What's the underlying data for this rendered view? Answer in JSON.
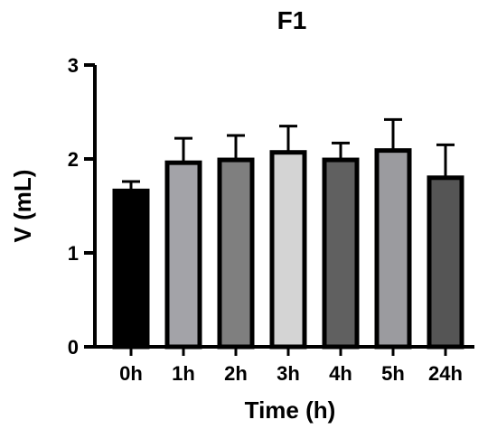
{
  "chart_data": {
    "type": "bar",
    "title": "F1",
    "xlabel": "Time (h)",
    "ylabel": "V (mL)",
    "ylim": [
      0,
      3
    ],
    "yticks": [
      0,
      1,
      2,
      3
    ],
    "categories": [
      "0h",
      "1h",
      "2h",
      "3h",
      "4h",
      "5h",
      "24h"
    ],
    "values": [
      1.66,
      1.96,
      1.99,
      2.07,
      1.99,
      2.09,
      1.8
    ],
    "errors": [
      0.1,
      0.26,
      0.26,
      0.28,
      0.18,
      0.33,
      0.35
    ],
    "bar_colors": [
      "#000000",
      "#a3a3a8",
      "#7f7f7f",
      "#d4d4d4",
      "#606060",
      "#9b9b9f",
      "#555555"
    ],
    "grid": false,
    "legend": "none"
  }
}
